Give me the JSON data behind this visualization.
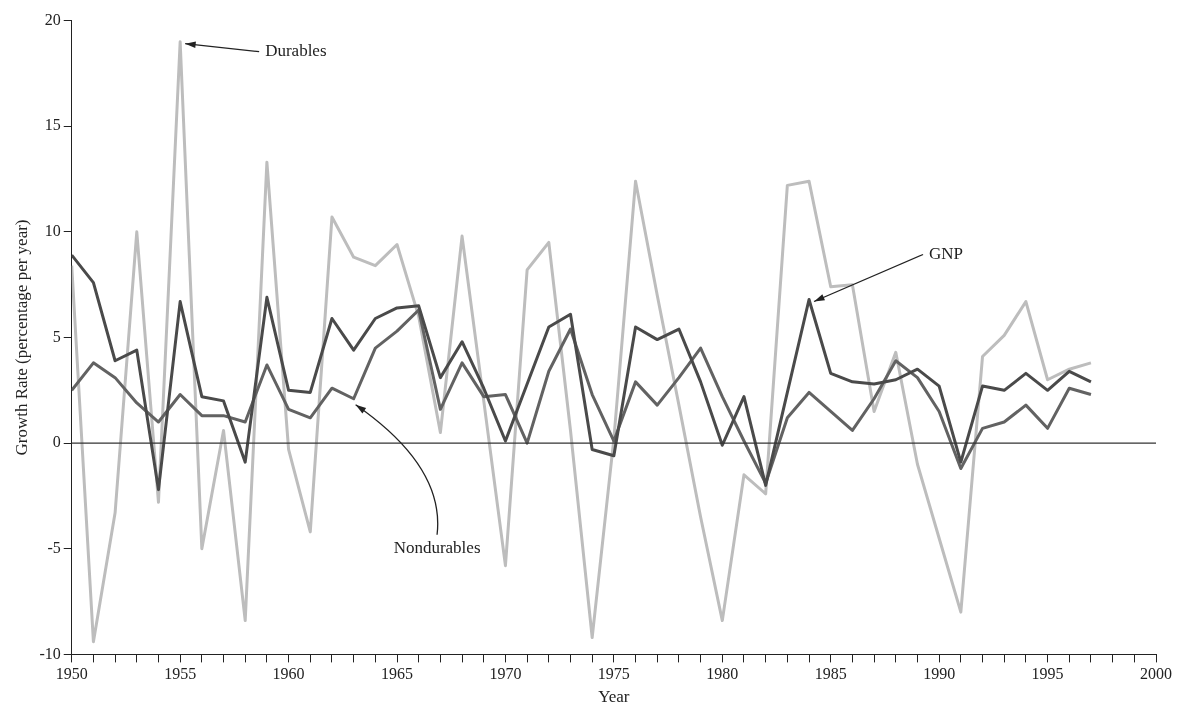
{
  "chart_data": {
    "type": "line",
    "xlabel": "Year",
    "ylabel": "Growth Rate (percentage per year)",
    "x": [
      1950,
      1951,
      1952,
      1953,
      1954,
      1955,
      1956,
      1957,
      1958,
      1959,
      1960,
      1961,
      1962,
      1963,
      1964,
      1965,
      1966,
      1967,
      1968,
      1969,
      1970,
      1971,
      1972,
      1973,
      1974,
      1975,
      1976,
      1977,
      1978,
      1979,
      1980,
      1981,
      1982,
      1983,
      1984,
      1985,
      1986,
      1987,
      1988,
      1989,
      1990,
      1991,
      1992,
      1993,
      1994,
      1995,
      1996,
      1997
    ],
    "series": [
      {
        "color": "#4a4a4a",
        "values": [
          8.9,
          7.6,
          3.9,
          4.4,
          -2.2,
          6.7,
          2.2,
          2.0,
          -0.9,
          6.9,
          2.5,
          2.4,
          5.9,
          4.4,
          5.9,
          6.4,
          6.5,
          3.1,
          4.8,
          2.6,
          0.1,
          2.8,
          5.5,
          6.1,
          -0.3,
          -0.6,
          5.5,
          4.9,
          5.4,
          2.9,
          -0.1,
          2.2,
          -2.0,
          2.4,
          6.8,
          3.3,
          2.9,
          2.8,
          3.0,
          3.5,
          2.7,
          -0.9,
          2.7,
          2.5,
          3.3,
          2.5,
          3.4,
          2.9
        ]
      },
      {
        "color": "#626262",
        "values": [
          2.5,
          3.8,
          3.1,
          1.9,
          1.0,
          2.3,
          1.3,
          1.3,
          1.0,
          3.7,
          1.6,
          1.2,
          2.6,
          2.1,
          4.5,
          5.3,
          6.3,
          1.6,
          3.8,
          2.2,
          2.3,
          0.0,
          3.4,
          5.4,
          2.3,
          0.1,
          2.9,
          1.8,
          3.1,
          4.5,
          2.2,
          0.1,
          -1.9,
          1.2,
          2.4,
          1.5,
          0.6,
          2.1,
          3.9,
          3.1,
          1.5,
          -1.2,
          0.7,
          1.0,
          1.8,
          0.7,
          2.6,
          2.3
        ]
      },
      {
        "color": "#bdbdbd",
        "values": [
          8.4,
          -9.4,
          -3.3,
          10.0,
          -2.8,
          19.0,
          -5.0,
          0.6,
          -8.4,
          13.3,
          -0.3,
          -4.2,
          10.7,
          8.8,
          8.4,
          9.4,
          6.0,
          0.5,
          9.8,
          2.0,
          -5.8,
          8.2,
          9.5,
          0.6,
          -9.2,
          0.2,
          12.4,
          7.0,
          1.8,
          -3.5,
          -8.4,
          -1.5,
          -2.4,
          12.2,
          12.4,
          7.4,
          7.5,
          1.5,
          4.3,
          -1.0,
          -4.5,
          -8.0,
          4.1,
          5.1,
          6.7,
          3.0,
          3.5,
          3.8
        ]
      }
    ],
    "xlim": [
      1950,
      2000
    ],
    "xticks": [
      1950,
      {
        "value": 1951,
        "label": null
      },
      {
        "value": 1952,
        "label": null
      },
      {
        "value": 1953,
        "label": null
      },
      {
        "value": 1954,
        "label": null
      },
      1955,
      {
        "value": 1956,
        "label": null
      },
      {
        "value": 1957,
        "label": null
      },
      {
        "value": 1958,
        "label": null
      },
      {
        "value": 1959,
        "label": null
      },
      1960,
      {
        "value": 1961,
        "label": null
      },
      {
        "value": 1962,
        "label": null
      },
      {
        "value": 1963,
        "label": null
      },
      {
        "value": 1964,
        "label": null
      },
      1965,
      {
        "value": 1966,
        "label": null
      },
      {
        "value": 1967,
        "label": null
      },
      {
        "value": 1968,
        "label": null
      },
      {
        "value": 1969,
        "label": null
      },
      1970,
      {
        "value": 1971,
        "label": null
      },
      {
        "value": 1972,
        "label": null
      },
      {
        "value": 1973,
        "label": null
      },
      {
        "value": 1974,
        "label": null
      },
      1975,
      {
        "value": 1976,
        "label": null
      },
      {
        "value": 1977,
        "label": null
      },
      {
        "value": 1978,
        "label": null
      },
      {
        "value": 1979,
        "label": null
      },
      1980,
      {
        "value": 1981,
        "label": null
      },
      {
        "value": 1982,
        "label": null
      },
      {
        "value": 1983,
        "label": null
      },
      {
        "value": 1984,
        "label": null
      },
      1985,
      {
        "value": 1986,
        "label": null
      },
      {
        "value": 1987,
        "label": null
      },
      {
        "value": 1988,
        "label": null
      },
      {
        "value": 1989,
        "label": null
      },
      1990,
      {
        "value": 1991,
        "label": null
      },
      {
        "value": 1992,
        "label": null
      },
      {
        "value": 1993,
        "label": null
      },
      {
        "value": 1994,
        "label": null
      },
      1995,
      {
        "value": 1996,
        "label": null
      },
      {
        "value": 1997,
        "label": null
      },
      {
        "value": 1998,
        "label": null
      },
      {
        "value": 1999,
        "label": null
      },
      2000
    ],
    "ylim": [
      -10,
      20
    ],
    "yticks": [
      -10,
      -5,
      0,
      5,
      10,
      15,
      20
    ],
    "ref_lines": [
      {
        "axis": "y",
        "value": 0,
        "color": "#333333"
      }
    ],
    "annotations": [
      {
        "text": "Durables",
        "x": 1955,
        "y": 19.0
      },
      {
        "text": "GNP",
        "x": 1984,
        "y": 6.8
      },
      {
        "text": "Nondurables",
        "x": 1963,
        "y": 2.1
      }
    ],
    "grid": false,
    "legend": false,
    "marker": "none",
    "line_style": "solid"
  }
}
